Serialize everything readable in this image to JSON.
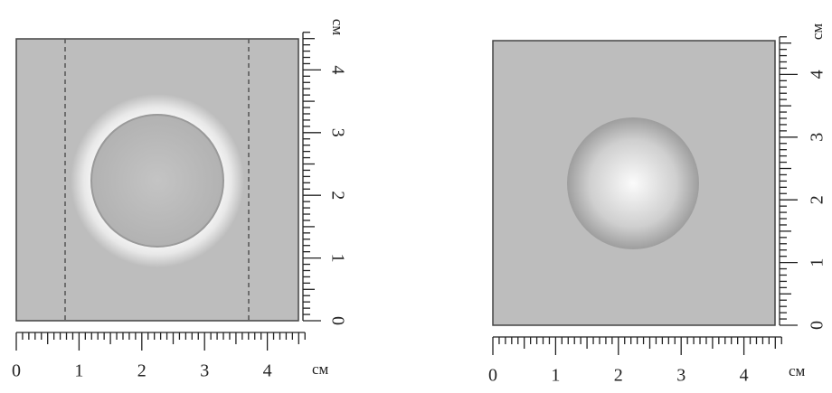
{
  "panels": [
    {
      "x_axis": {
        "ticks": [
          "0",
          "1",
          "2",
          "3",
          "4"
        ],
        "unit": "см"
      },
      "y_axis": {
        "ticks": [
          "0",
          "1",
          "2",
          "3",
          "4"
        ],
        "unit": "см"
      }
    },
    {
      "x_axis": {
        "ticks": [
          "0",
          "1",
          "2",
          "3",
          "4"
        ],
        "unit": "см"
      },
      "y_axis": {
        "ticks": [
          "0",
          "1",
          "2",
          "3",
          "4"
        ],
        "unit": "см"
      }
    }
  ]
}
